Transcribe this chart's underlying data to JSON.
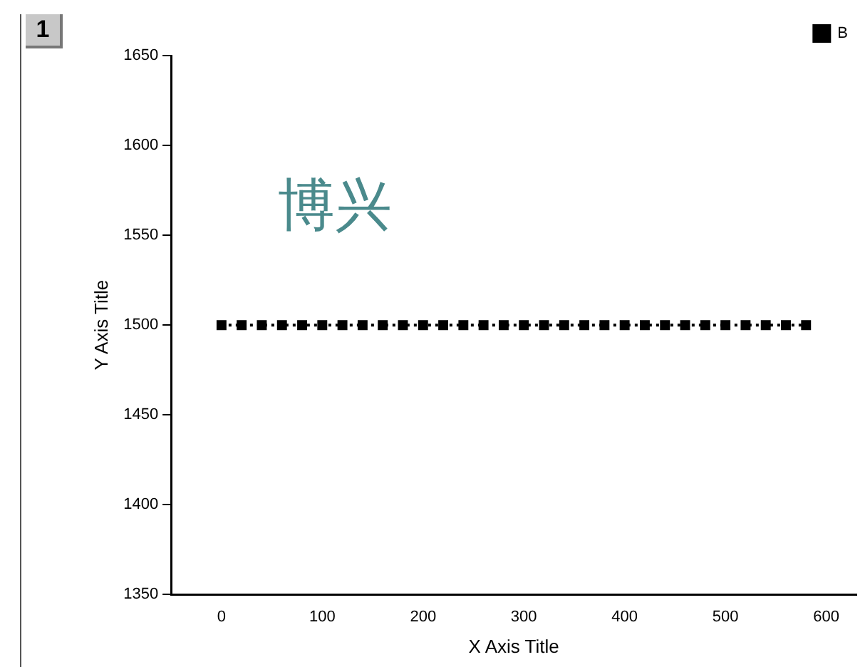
{
  "chart_data": {
    "type": "line",
    "xlabel": "X Axis Title",
    "ylabel": "Y Axis Title",
    "annotations": [
      "博兴",
      "1"
    ],
    "x": [
      0,
      20,
      40,
      60,
      80,
      100,
      120,
      140,
      160,
      180,
      200,
      220,
      240,
      260,
      280,
      300,
      320,
      340,
      360,
      380,
      400,
      420,
      440,
      460,
      480,
      500,
      520,
      540,
      560,
      580
    ],
    "series": [
      {
        "name": "B",
        "color": "#000000",
        "values": [
          1500,
          1500,
          1500,
          1500,
          1500,
          1500,
          1500,
          1500,
          1500,
          1500,
          1500,
          1500,
          1500,
          1500,
          1500,
          1500,
          1500,
          1500,
          1500,
          1500,
          1500,
          1500,
          1500,
          1500,
          1500,
          1500,
          1500,
          1500,
          1500,
          1500
        ]
      }
    ],
    "xlim": [
      -50,
      630
    ],
    "xticks": [
      0,
      100,
      200,
      300,
      400,
      500,
      600
    ],
    "ylim": [
      1350,
      1650
    ],
    "yticks": [
      1350,
      1400,
      1450,
      1500,
      1550,
      1600,
      1650
    ],
    "grid": false,
    "legend": "top right",
    "marker": "square",
    "line_style": "dotted"
  }
}
